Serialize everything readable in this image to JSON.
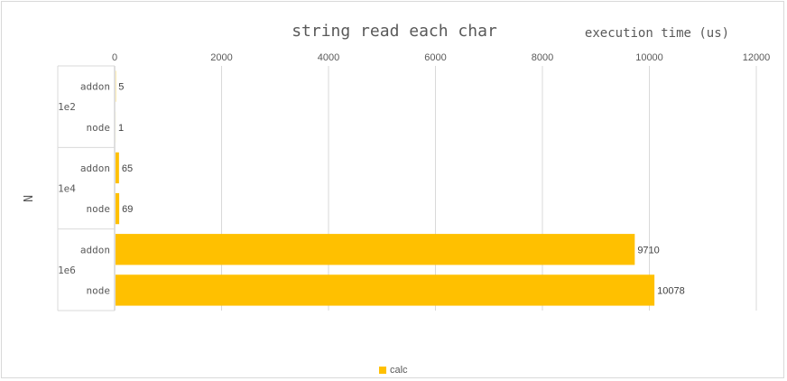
{
  "chart_data": {
    "type": "bar",
    "orientation": "horizontal",
    "title": "string read each char",
    "xlabel": "execution time (us)",
    "ylabel": "N",
    "xlim": [
      0,
      12000
    ],
    "xticks": [
      "0",
      "2000",
      "4000",
      "6000",
      "8000",
      "10000",
      "12000"
    ],
    "groups": [
      {
        "label": "1e2",
        "categories": [
          {
            "label": "addon",
            "value": 5
          },
          {
            "label": "node",
            "value": 1
          }
        ]
      },
      {
        "label": "1e4",
        "categories": [
          {
            "label": "addon",
            "value": 65
          },
          {
            "label": "node",
            "value": 69
          }
        ]
      },
      {
        "label": "1e6",
        "categories": [
          {
            "label": "addon",
            "value": 9710
          },
          {
            "label": "node",
            "value": 10078
          }
        ]
      }
    ],
    "series": [
      {
        "name": "calc",
        "color": "#ffc000"
      }
    ],
    "grid": true,
    "legend": "bottom"
  }
}
